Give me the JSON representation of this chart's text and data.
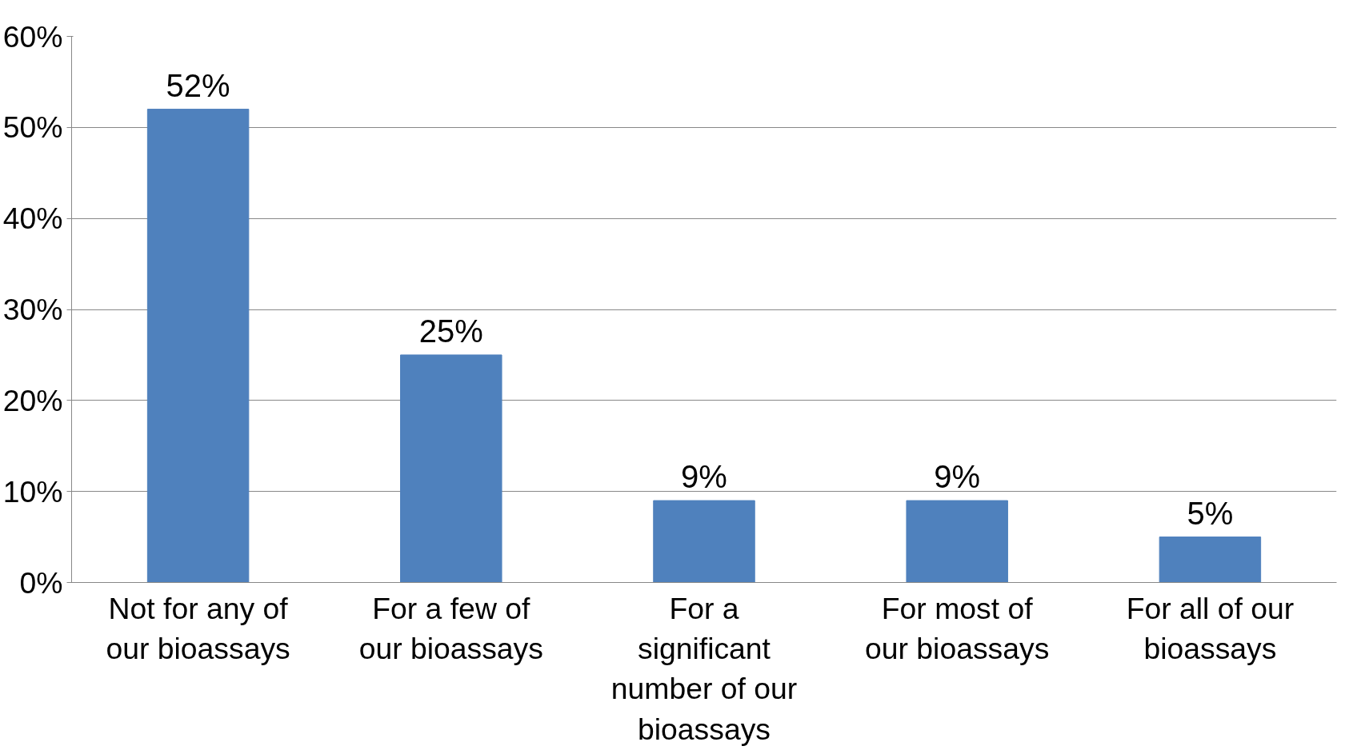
{
  "chart_data": {
    "type": "bar",
    "categories": [
      "Not for any of our bioassays",
      "For a few of our bioassays",
      "For a significant number of our bioassays",
      "For most of our bioassays",
      "For all of our bioassays"
    ],
    "values": [
      52,
      25,
      9,
      9,
      5
    ],
    "value_labels": [
      "52%",
      "25%",
      "9%",
      "9%",
      "5%"
    ],
    "color": "#4f81bd",
    "ylim": [
      0,
      60
    ],
    "yticks": [
      {
        "value": 0,
        "label": "0%"
      },
      {
        "value": 10,
        "label": "10%"
      },
      {
        "value": 20,
        "label": "20%"
      },
      {
        "value": 30,
        "label": "30%"
      },
      {
        "value": 40,
        "label": "40%"
      },
      {
        "value": 50,
        "label": "50%"
      },
      {
        "value": 60,
        "label": "60%"
      }
    ],
    "grid": "y"
  }
}
